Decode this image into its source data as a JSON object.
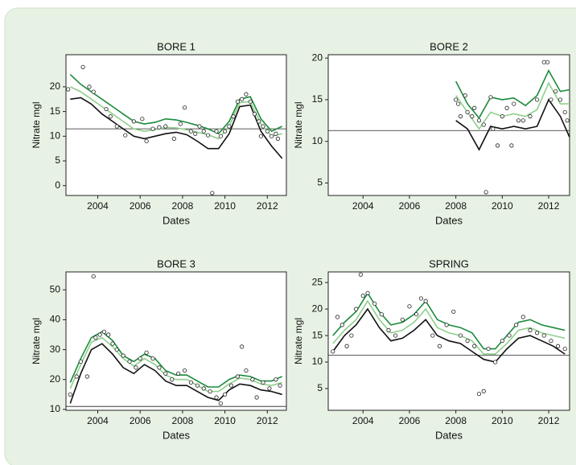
{
  "chart_data": [
    {
      "type": "line",
      "title": "BORE 1",
      "xlabel": "Dates",
      "ylabel": "Nitrate mgl",
      "xlim": [
        2002.5,
        2012.9
      ],
      "ylim": [
        -2,
        26.5
      ],
      "xticks": [
        2004,
        2006,
        2008,
        2010,
        2012
      ],
      "yticks": [
        0,
        5,
        10,
        15,
        20
      ],
      "hline": 11.5,
      "x": [
        2002.7,
        2003.2,
        2003.7,
        2004.2,
        2004.7,
        2005.2,
        2005.7,
        2006.2,
        2006.7,
        2007.2,
        2007.7,
        2008.2,
        2008.7,
        2009.2,
        2009.7,
        2010.2,
        2010.7,
        2011.2,
        2011.7,
        2012.2,
        2012.7
      ],
      "series": [
        {
          "color": "#1a8a3a",
          "values": [
            22.5,
            20.5,
            19,
            17.5,
            16,
            14.5,
            13,
            12.5,
            12.8,
            13.5,
            13.3,
            12.8,
            12.2,
            11.5,
            10.5,
            13,
            17.5,
            18,
            13.5,
            11,
            12
          ]
        },
        {
          "color": "#8fcf8a",
          "values": [
            20,
            19,
            17.5,
            16,
            14.5,
            13,
            11.5,
            11,
            11.3,
            11.8,
            11.7,
            11.3,
            10.8,
            10.3,
            9.5,
            12,
            16.8,
            17,
            12.5,
            10,
            10.5
          ]
        },
        {
          "color": "#111111",
          "values": [
            17.5,
            17.8,
            16.5,
            14.5,
            13,
            11.5,
            10,
            9.5,
            10,
            10.5,
            10.8,
            10.3,
            9,
            7.5,
            7.5,
            10.5,
            16,
            16.3,
            11,
            8,
            5.5
          ]
        }
      ],
      "points": {
        "x": [
          2002.6,
          2003.3,
          2003.6,
          2003.8,
          2004.4,
          2004.6,
          2004.9,
          2005.3,
          2005.7,
          2006.1,
          2006.3,
          2006.6,
          2006.9,
          2007.2,
          2007.6,
          2007.9,
          2008.1,
          2008.4,
          2008.6,
          2008.8,
          2009.0,
          2009.2,
          2009.4,
          2009.6,
          2009.8,
          2010.0,
          2010.2,
          2010.4,
          2010.6,
          2010.8,
          2011.0,
          2011.2,
          2011.4,
          2011.6,
          2011.8,
          2012.0,
          2012.2,
          2012.5,
          2011.7,
          2012.4
        ],
        "values": [
          19.5,
          24,
          20,
          19,
          15.5,
          14,
          12,
          10.2,
          13,
          13.5,
          9,
          11.5,
          11.8,
          12,
          9.5,
          12.5,
          15.8,
          11,
          10.5,
          12,
          11,
          10.2,
          -1.5,
          11,
          10,
          11,
          12,
          14,
          17,
          17.5,
          18.5,
          17,
          14.5,
          13,
          12,
          11,
          10,
          9.5,
          10,
          10.5
        ]
      }
    },
    {
      "type": "line",
      "title": "BORE 2",
      "xlabel": "Dates",
      "ylabel": "Nitrate mgl",
      "xlim": [
        2002.5,
        2012.9
      ],
      "ylim": [
        3.5,
        20.4
      ],
      "xticks": [
        2004,
        2006,
        2008,
        2010,
        2012
      ],
      "yticks": [
        5,
        10,
        15,
        20
      ],
      "hline": 11.3,
      "x": [
        2008.0,
        2008.5,
        2009.0,
        2009.5,
        2010.0,
        2010.5,
        2011.0,
        2011.5,
        2012.0,
        2012.5,
        2012.9
      ],
      "series": [
        {
          "color": "#1a8a3a",
          "values": [
            17.2,
            14.5,
            12.8,
            15.3,
            15,
            15.2,
            14.3,
            15.5,
            18.5,
            16,
            16.2
          ]
        },
        {
          "color": "#8fcf8a",
          "values": [
            15.5,
            13.5,
            11.5,
            13.5,
            13,
            13.3,
            13,
            13.8,
            17,
            14.5,
            14.5
          ]
        },
        {
          "color": "#111111",
          "values": [
            12.5,
            11.5,
            9,
            11.8,
            11.5,
            11.8,
            11.5,
            11.8,
            15,
            13,
            10.5
          ]
        }
      ],
      "points": {
        "x": [
          2008.0,
          2008.1,
          2008.2,
          2008.4,
          2008.5,
          2008.7,
          2008.8,
          2009.0,
          2009.2,
          2009.3,
          2009.5,
          2009.6,
          2009.8,
          2010.0,
          2010.2,
          2010.4,
          2010.5,
          2010.7,
          2010.9,
          2011.2,
          2011.5,
          2011.8,
          2011.95,
          2012.1,
          2012.3,
          2012.5,
          2012.7,
          2012.8
        ],
        "values": [
          15,
          14.5,
          13,
          15.5,
          13.5,
          13,
          14,
          12.5,
          12,
          3.9,
          15.3,
          11.5,
          9.5,
          13,
          14,
          9.5,
          14.5,
          12.5,
          12.5,
          13,
          15,
          19.5,
          19.5,
          15,
          16,
          15,
          13.5,
          12.5
        ]
      }
    },
    {
      "type": "line",
      "title": "BORE 3",
      "xlabel": "Dates",
      "ylabel": "Nitrate mgl",
      "xlim": [
        2002.5,
        2012.9
      ],
      "ylim": [
        9.7,
        56
      ],
      "xticks": [
        2004,
        2006,
        2008,
        2010,
        2012
      ],
      "yticks": [
        10,
        20,
        30,
        40,
        50
      ],
      "hline": 11,
      "x": [
        2002.7,
        2003.2,
        2003.7,
        2004.2,
        2004.7,
        2005.2,
        2005.7,
        2006.2,
        2006.7,
        2007.2,
        2007.7,
        2008.2,
        2008.7,
        2009.2,
        2009.7,
        2010.2,
        2010.7,
        2011.2,
        2011.7,
        2012.2,
        2012.7
      ],
      "series": [
        {
          "color": "#1a8a3a",
          "values": [
            19,
            27,
            34,
            36,
            33,
            28,
            26,
            28.5,
            27,
            23,
            21.5,
            21.5,
            19.5,
            17.5,
            17.5,
            20,
            21.5,
            21,
            19.5,
            19.5,
            21
          ]
        },
        {
          "color": "#8fcf8a",
          "values": [
            17,
            25,
            32.5,
            34,
            31,
            27,
            24.5,
            27,
            25,
            21.5,
            20,
            20,
            18,
            16,
            16,
            18.5,
            20.5,
            20,
            18.5,
            18,
            19
          ]
        },
        {
          "color": "#111111",
          "values": [
            12,
            22,
            30,
            32,
            28.5,
            24,
            22,
            25,
            23,
            19.5,
            18,
            18,
            16,
            14,
            13,
            16.5,
            18.5,
            18,
            16.5,
            16,
            15
          ]
        }
      ],
      "points": {
        "x": [
          2002.7,
          2003.0,
          2003.2,
          2003.5,
          2003.8,
          2003.9,
          2004.1,
          2004.3,
          2004.5,
          2004.7,
          2004.9,
          2005.2,
          2005.5,
          2005.8,
          2006.0,
          2006.3,
          2006.6,
          2006.9,
          2007.2,
          2007.5,
          2007.8,
          2008.1,
          2008.4,
          2008.7,
          2009.0,
          2009.3,
          2009.6,
          2009.8,
          2010.0,
          2010.3,
          2010.6,
          2010.8,
          2011.0,
          2011.3,
          2011.5,
          2011.8,
          2012.1,
          2012.4,
          2012.6
        ],
        "values": [
          15,
          21,
          26,
          21,
          54.5,
          34,
          35,
          36,
          35,
          32,
          30,
          28,
          26,
          24,
          27,
          29,
          27,
          24,
          22,
          20,
          22,
          23,
          19,
          18,
          17,
          16,
          14,
          12,
          15,
          18,
          21,
          31,
          23,
          20,
          14,
          19,
          17,
          20,
          18
        ]
      }
    },
    {
      "type": "line",
      "title": "SPRING",
      "xlabel": "Dates",
      "ylabel": "Nitrate mgl",
      "xlim": [
        2002.5,
        2012.9
      ],
      "ylim": [
        0.9,
        27
      ],
      "xticks": [
        2004,
        2006,
        2008,
        2010,
        2012
      ],
      "yticks": [
        5,
        10,
        15,
        20,
        25
      ],
      "hline": 11.3,
      "x": [
        2002.7,
        2003.2,
        2003.7,
        2004.2,
        2004.7,
        2005.2,
        2005.7,
        2006.2,
        2006.7,
        2007.2,
        2007.7,
        2008.2,
        2008.7,
        2009.2,
        2009.7,
        2010.2,
        2010.7,
        2011.2,
        2011.7,
        2012.2,
        2012.7
      ],
      "series": [
        {
          "color": "#1a8a3a",
          "values": [
            15,
            17.5,
            19.5,
            23,
            19.5,
            17,
            17.5,
            19,
            21.5,
            18,
            17,
            16.5,
            15.5,
            12.5,
            12.5,
            15,
            17.5,
            18,
            17,
            16.5,
            16
          ]
        },
        {
          "color": "#8fcf8a",
          "values": [
            13.5,
            16,
            18,
            21.5,
            18,
            15.5,
            16,
            17.5,
            20,
            16.5,
            15.5,
            15,
            14,
            11.5,
            11.5,
            13.5,
            16,
            16.5,
            15.5,
            15,
            14.5
          ]
        },
        {
          "color": "#111111",
          "values": [
            12,
            15,
            17,
            20,
            16.5,
            14,
            14.5,
            16,
            18,
            15,
            14,
            13.5,
            12,
            10.5,
            10,
            12.5,
            14.5,
            15,
            14,
            13,
            11.5
          ]
        }
      ],
      "points": {
        "x": [
          2002.7,
          2002.9,
          2003.1,
          2003.3,
          2003.5,
          2003.7,
          2003.9,
          2004.0,
          2004.2,
          2004.5,
          2004.8,
          2005.1,
          2005.4,
          2005.7,
          2006.0,
          2006.3,
          2006.5,
          2006.7,
          2007.0,
          2007.3,
          2007.6,
          2007.9,
          2008.2,
          2008.5,
          2008.8,
          2009.0,
          2009.2,
          2009.4,
          2009.7,
          2010.0,
          2010.3,
          2010.6,
          2010.9,
          2011.2,
          2011.5,
          2011.8,
          2012.1,
          2012.4,
          2012.7
        ],
        "values": [
          12,
          18.5,
          17,
          13,
          15,
          20,
          26.5,
          22.5,
          23,
          21,
          19,
          16,
          15,
          18,
          20.5,
          19,
          22,
          21.5,
          15,
          13,
          17,
          19.5,
          15,
          14,
          13,
          4,
          4.5,
          12.5,
          10,
          14,
          15,
          17,
          18.5,
          16,
          15.5,
          15,
          14,
          13,
          12.5
        ]
      }
    }
  ]
}
